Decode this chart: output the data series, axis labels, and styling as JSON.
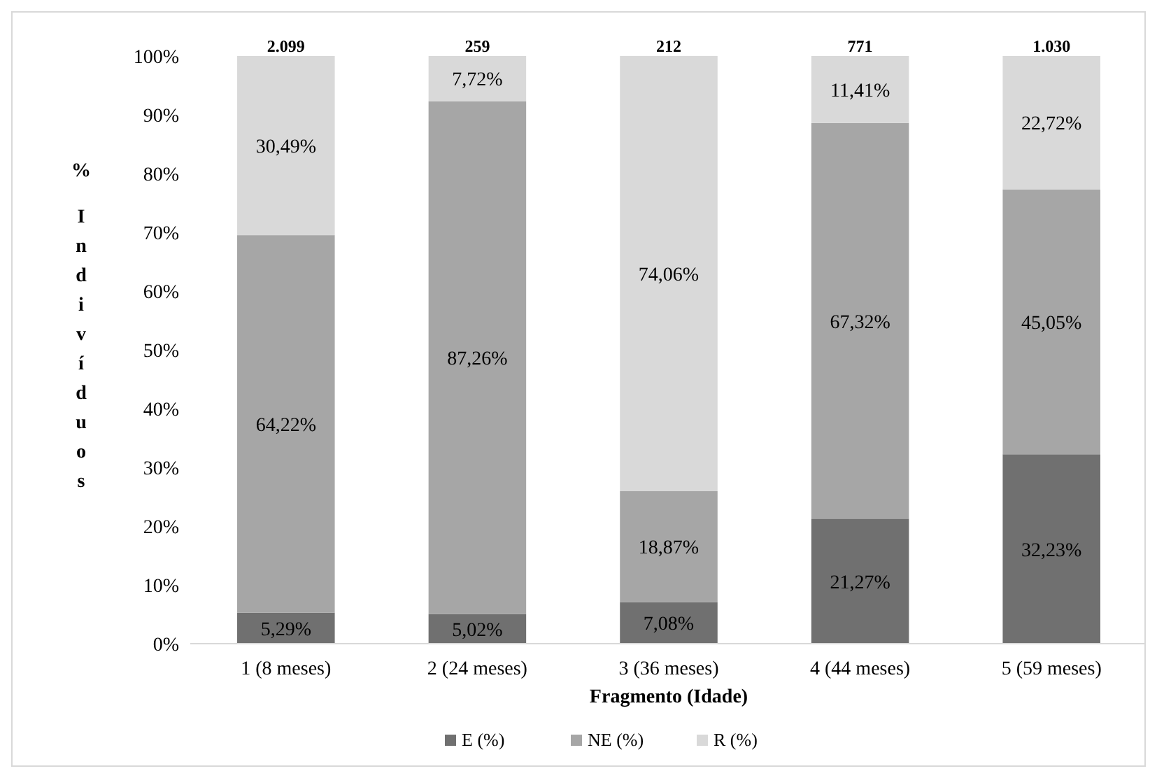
{
  "chart_data": {
    "type": "bar",
    "stacked": true,
    "xlabel": "Fragmento (Idade)",
    "ylabel": "% Indivíduos",
    "categories": [
      "1 (8 meses)",
      "2 (24 meses)",
      "3 (36 meses)",
      "4 (44 meses)",
      "5 (59 meses)"
    ],
    "series": [
      {
        "name": "E (%)",
        "color": "#707070",
        "values": [
          5.29,
          5.02,
          7.08,
          21.27,
          32.23
        ],
        "value_labels": [
          "5,29%",
          "5,02%",
          "7,08%",
          "21,27%",
          "32,23%"
        ]
      },
      {
        "name": "NE (%)",
        "color": "#a6a6a6",
        "values": [
          64.22,
          87.26,
          18.87,
          67.32,
          45.05
        ],
        "value_labels": [
          "64,22%",
          "87,26%",
          "18,87%",
          "67,32%",
          "45,05%"
        ]
      },
      {
        "name": "R (%)",
        "color": "#d9d9d9",
        "values": [
          30.49,
          7.72,
          74.06,
          11.41,
          22.72
        ],
        "value_labels": [
          "30,49%",
          "7,72%",
          "74,06%",
          "11,41%",
          "22,72%"
        ]
      }
    ],
    "annotations": [
      {
        "text": "2.099",
        "x": "1 (8 meses)",
        "y": 100
      },
      {
        "text": "259",
        "x": "2 (24 meses)",
        "y": 100
      },
      {
        "text": "212",
        "x": "3 (36 meses)",
        "y": 100
      },
      {
        "text": "771",
        "x": "4 (44 meses)",
        "y": 100
      },
      {
        "text": "1.030",
        "x": "5 (59 meses)",
        "y": 100
      }
    ],
    "ylim": [
      0,
      100
    ],
    "yticks": [
      {
        "value": 0,
        "label": "0%"
      },
      {
        "value": 10,
        "label": "10%"
      },
      {
        "value": 20,
        "label": "20%"
      },
      {
        "value": 30,
        "label": "30%"
      },
      {
        "value": 40,
        "label": "40%"
      },
      {
        "value": 50,
        "label": "50%"
      },
      {
        "value": 60,
        "label": "60%"
      },
      {
        "value": 70,
        "label": "70%"
      },
      {
        "value": 80,
        "label": "80%"
      },
      {
        "value": 90,
        "label": "90%"
      },
      {
        "value": 100,
        "label": "100%"
      }
    ],
    "grid": false,
    "legend": "bottom"
  }
}
